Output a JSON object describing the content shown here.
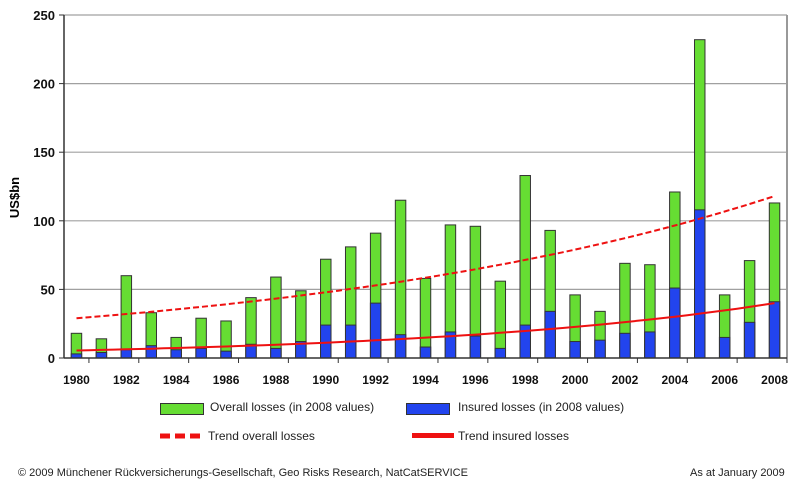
{
  "chart_data": {
    "type": "bar",
    "stacked": "overlay",
    "title": "",
    "xlabel": "",
    "ylabel": "US$bn",
    "ylim": [
      0,
      250
    ],
    "yticks": [
      0,
      50,
      100,
      150,
      200,
      250
    ],
    "grid": true,
    "x": [
      1980,
      1981,
      1982,
      1983,
      1984,
      1985,
      1986,
      1987,
      1988,
      1989,
      1990,
      1991,
      1992,
      1993,
      1994,
      1995,
      1996,
      1997,
      1998,
      1999,
      2000,
      2001,
      2002,
      2003,
      2004,
      2005,
      2006,
      2007,
      2008
    ],
    "xtick_labels": [
      "1980",
      "1982",
      "1984",
      "1986",
      "1988",
      "1990",
      "1992",
      "1994",
      "1996",
      "1998",
      "2000",
      "2002",
      "2004",
      "2006",
      "2008"
    ],
    "series": [
      {
        "name": "Overall losses (in 2008 values)",
        "type": "bar",
        "color": "#66dd33",
        "values": [
          18,
          14,
          60,
          33,
          15,
          29,
          27,
          44,
          59,
          49,
          72,
          81,
          91,
          115,
          58,
          97,
          96,
          56,
          133,
          93,
          46,
          34,
          69,
          68,
          121,
          232,
          46,
          71,
          113
        ]
      },
      {
        "name": "Insured losses (in 2008 values)",
        "type": "bar",
        "color": "#2244ee",
        "values": [
          3,
          4,
          6,
          9,
          6,
          7,
          5,
          10,
          7,
          12,
          24,
          24,
          40,
          17,
          8,
          19,
          16,
          7,
          24,
          34,
          12,
          13,
          18,
          19,
          51,
          108,
          15,
          26,
          41
        ]
      },
      {
        "name": "Trend overall losses",
        "type": "line",
        "style": "dashed",
        "color": "#ee1111",
        "start": [
          1980,
          29
        ],
        "end": [
          2008,
          118
        ]
      },
      {
        "name": "Trend insured losses",
        "type": "line",
        "style": "solid",
        "color": "#ee1111",
        "start": [
          1980,
          5.5
        ],
        "end": [
          2008,
          40
        ]
      }
    ],
    "legend_position": "bottom"
  },
  "legend": {
    "overall": "Overall losses (in 2008 values)",
    "insured": "Insured losses (in 2008 values)",
    "trend_overall": "Trend overall losses",
    "trend_insured": "Trend insured losses"
  },
  "footer": {
    "source": "© 2009 Münchener Rückversicherungs-Gesellschaft, Geo Risks Research, NatCatSERVICE",
    "date": "As at January 2009"
  }
}
